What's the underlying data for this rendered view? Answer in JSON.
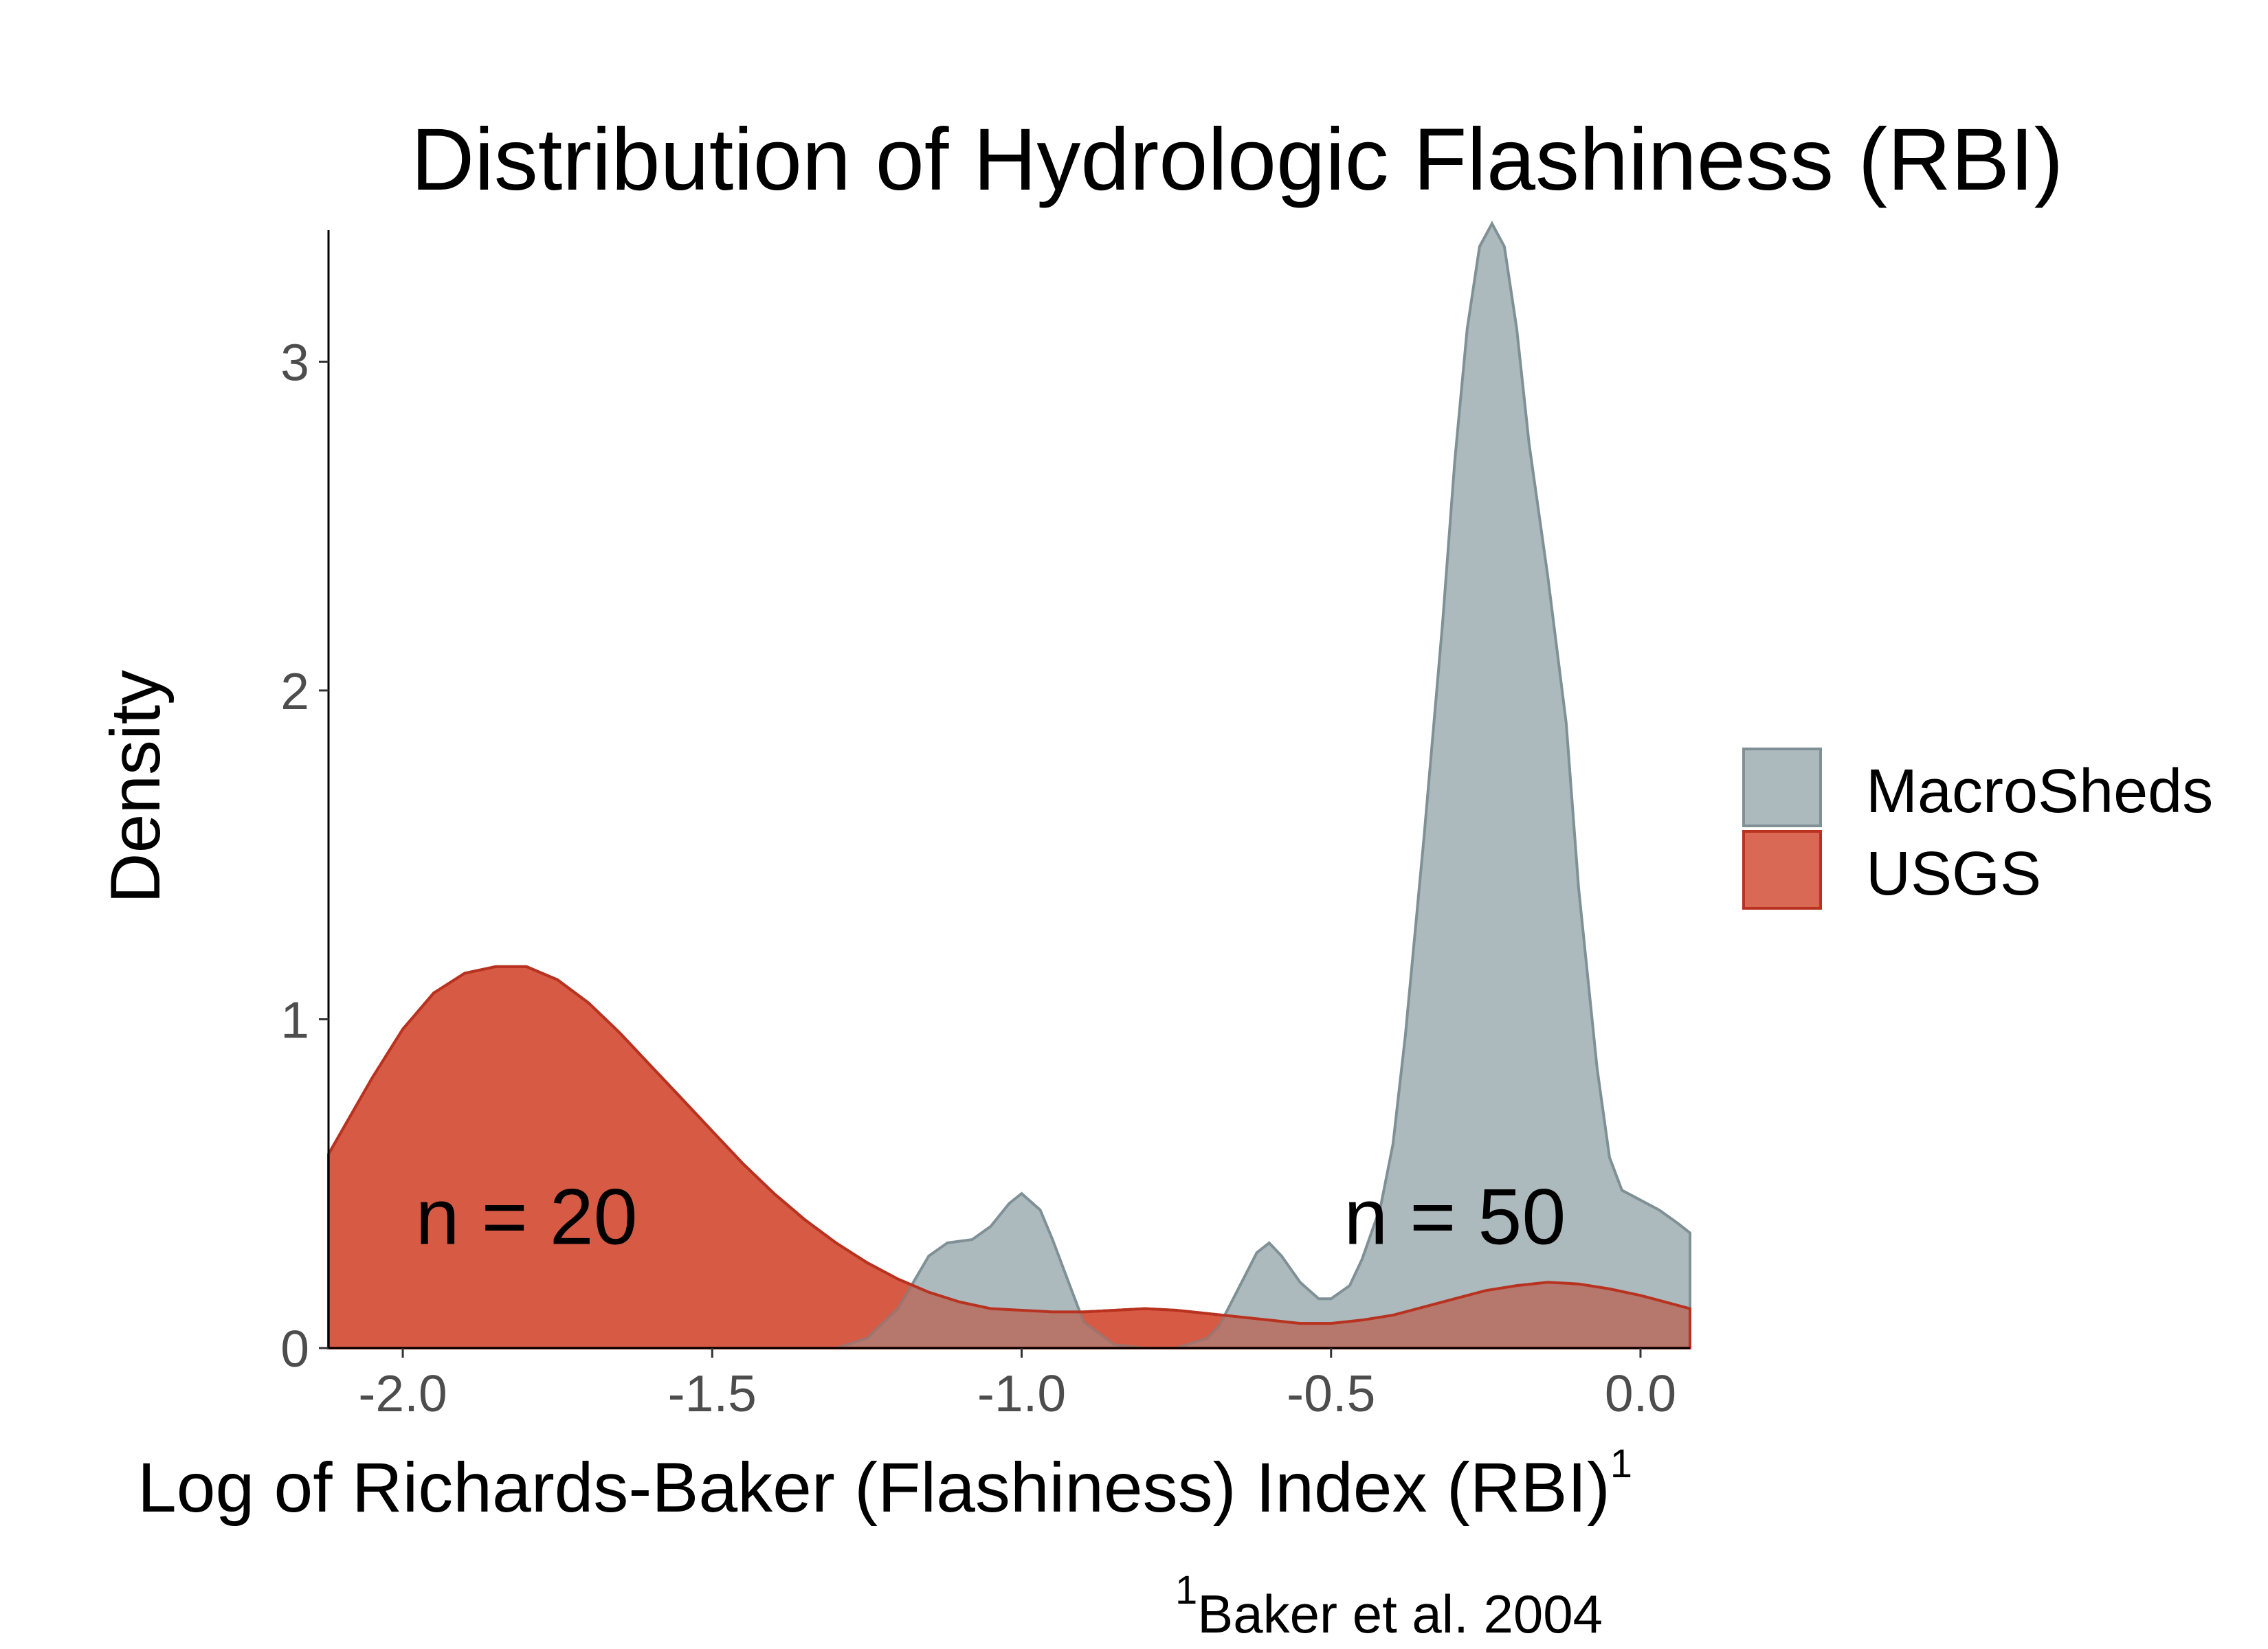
{
  "chart_data": {
    "type": "area",
    "title": "Distribution of Hydrologic Flashiness (RBI)",
    "xlabel": "Log of Richards-Baker (Flashiness) Index (RBI)",
    "xlabel_superscript": "1",
    "ylabel": "Density",
    "xlim": [
      -2.12,
      0.08
    ],
    "ylim": [
      0,
      3.4
    ],
    "x_ticks": [
      -2.0,
      -1.5,
      -1.0,
      -0.5,
      0.0
    ],
    "x_tick_labels": [
      "-2.0",
      "-1.5",
      "-1.0",
      "-0.5",
      "0.0"
    ],
    "y_ticks": [
      0,
      1,
      2,
      3
    ],
    "y_tick_labels": [
      "0",
      "1",
      "2",
      "3"
    ],
    "grid": false,
    "legend_position": "right",
    "series": [
      {
        "name": "USGS",
        "fill": "#d1472e",
        "stroke": "#b8321f",
        "x": [
          -2.12,
          -2.05,
          -2.0,
          -1.95,
          -1.9,
          -1.85,
          -1.8,
          -1.75,
          -1.7,
          -1.65,
          -1.6,
          -1.55,
          -1.5,
          -1.45,
          -1.4,
          -1.35,
          -1.3,
          -1.25,
          -1.2,
          -1.15,
          -1.1,
          -1.05,
          -1.0,
          -0.95,
          -0.9,
          -0.85,
          -0.8,
          -0.75,
          -0.7,
          -0.65,
          -0.6,
          -0.55,
          -0.5,
          -0.45,
          -0.4,
          -0.35,
          -0.3,
          -0.25,
          -0.2,
          -0.15,
          -0.1,
          -0.05,
          0.0,
          0.05,
          0.08
        ],
        "y": [
          0.59,
          0.82,
          0.97,
          1.08,
          1.14,
          1.16,
          1.16,
          1.12,
          1.05,
          0.96,
          0.86,
          0.76,
          0.66,
          0.56,
          0.47,
          0.39,
          0.32,
          0.26,
          0.21,
          0.17,
          0.14,
          0.12,
          0.115,
          0.11,
          0.11,
          0.115,
          0.12,
          0.115,
          0.105,
          0.095,
          0.085,
          0.075,
          0.075,
          0.085,
          0.1,
          0.125,
          0.15,
          0.175,
          0.19,
          0.2,
          0.195,
          0.18,
          0.16,
          0.135,
          0.12
        ]
      },
      {
        "name": "MacroSheds",
        "fill": "#95a5aa",
        "stroke": "#7f9196",
        "x": [
          -1.3,
          -1.25,
          -1.2,
          -1.15,
          -1.12,
          -1.08,
          -1.05,
          -1.02,
          -1.0,
          -0.97,
          -0.95,
          -0.92,
          -0.9,
          -0.85,
          -0.8,
          -0.75,
          -0.7,
          -0.68,
          -0.65,
          -0.62,
          -0.6,
          -0.58,
          -0.55,
          -0.52,
          -0.5,
          -0.47,
          -0.45,
          -0.42,
          -0.4,
          -0.38,
          -0.35,
          -0.32,
          -0.3,
          -0.28,
          -0.26,
          -0.24,
          -0.22,
          -0.2,
          -0.18,
          -0.15,
          -0.12,
          -0.1,
          -0.07,
          -0.05,
          -0.03,
          0.0,
          0.03,
          0.06,
          0.08
        ],
        "y": [
          0.0,
          0.03,
          0.12,
          0.28,
          0.32,
          0.33,
          0.37,
          0.44,
          0.47,
          0.42,
          0.33,
          0.18,
          0.08,
          0.01,
          0.0,
          0.0,
          0.03,
          0.07,
          0.18,
          0.29,
          0.32,
          0.28,
          0.2,
          0.15,
          0.15,
          0.19,
          0.27,
          0.43,
          0.62,
          0.95,
          1.55,
          2.2,
          2.7,
          3.1,
          3.35,
          3.42,
          3.35,
          3.1,
          2.75,
          2.35,
          1.9,
          1.4,
          0.85,
          0.58,
          0.48,
          0.45,
          0.42,
          0.38,
          0.35
        ]
      }
    ],
    "annotations": [
      {
        "text": "n = 20",
        "x": -1.8,
        "y": 0.4
      },
      {
        "text": "n = 50",
        "x": -0.3,
        "y": 0.4
      }
    ],
    "footnote": {
      "superscript": "1",
      "text": "Baker et al. 2004"
    }
  }
}
